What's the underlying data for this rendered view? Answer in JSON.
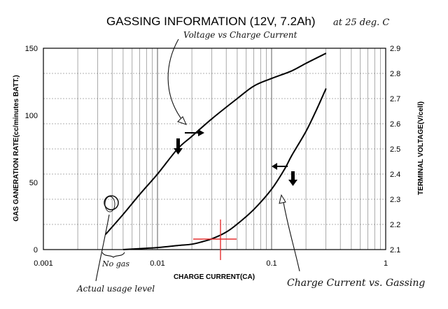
{
  "chart_data": {
    "type": "line",
    "title": "GASSING INFORMATION (12V, 7.2Ah)",
    "subtitle": "at 25 deg. C",
    "xlabel": "CHARGE CURRENT(CA)",
    "ylabel_left": "GAS GANERATION RATE(cc/minutes BATT.)",
    "ylabel_right": "TERMINAL VOLTAGE(V/cell)",
    "x_scale": "log",
    "xlim": [
      0.001,
      1
    ],
    "ylim_left": [
      0,
      150
    ],
    "ylim_right": [
      2.1,
      2.9
    ],
    "x_ticks": [
      "0.001",
      "0.01",
      "0.1",
      "1"
    ],
    "y_left_ticks": [
      "0",
      "50",
      "100",
      "150"
    ],
    "y_right_ticks": [
      "2.1",
      "2.2",
      "2.3",
      "2.4",
      "2.5",
      "2.6",
      "2.7",
      "2.8",
      "2.9"
    ],
    "grid": true,
    "series": [
      {
        "name": "Voltage vs Charge Current",
        "axis": "right",
        "x": [
          0.0035,
          0.005,
          0.007,
          0.01,
          0.015,
          0.02,
          0.03,
          0.05,
          0.07,
          0.1,
          0.15,
          0.2,
          0.3
        ],
        "y": [
          2.16,
          2.24,
          2.32,
          2.4,
          2.5,
          2.55,
          2.62,
          2.7,
          2.75,
          2.78,
          2.81,
          2.84,
          2.88
        ]
      },
      {
        "name": "Charge Current vs. Gassing",
        "axis": "left",
        "x": [
          0.005,
          0.008,
          0.01,
          0.015,
          0.02,
          0.025,
          0.03,
          0.04,
          0.05,
          0.07,
          0.1,
          0.13,
          0.15,
          0.2,
          0.25,
          0.3
        ],
        "y": [
          0,
          1,
          1.5,
          3,
          4,
          6,
          8,
          13,
          19,
          30,
          45,
          60,
          70,
          88,
          105,
          120
        ]
      }
    ],
    "annotations": [
      {
        "text": "Voltage vs Charge Current"
      },
      {
        "text": "Charge Current vs. Gassing"
      },
      {
        "text": "No gas"
      },
      {
        "text": "Actual usage level"
      }
    ]
  }
}
